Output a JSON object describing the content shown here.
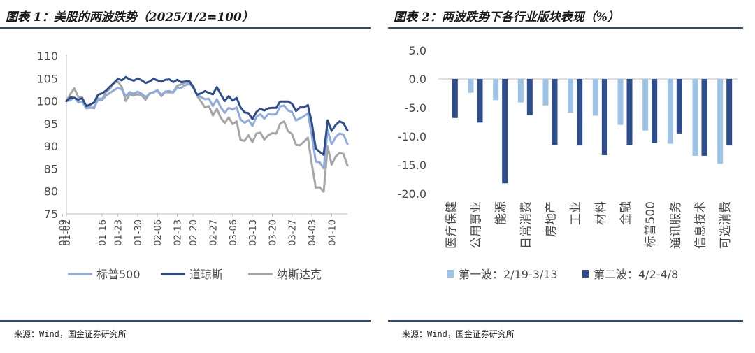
{
  "left": {
    "title": "图表 1：美股的两波跌势（2025/1/2=100）",
    "source": "来源：Wind，国金证券研究所",
    "chart_data": {
      "type": "line",
      "title": "图表 1：美股的两波跌势（2025/1/2=100）",
      "xlabel": "",
      "ylabel": "",
      "ylim": [
        75,
        110
      ],
      "yticks": [
        75,
        80,
        85,
        90,
        95,
        100,
        105,
        110
      ],
      "xticks": [
        "01-02",
        "01-09",
        "01-16",
        "01-23",
        "01-30",
        "02-06",
        "02-13",
        "02-20",
        "02-27",
        "03-06",
        "03-13",
        "03-20",
        "03-27",
        "04-03",
        "04-10"
      ],
      "grid": false,
      "legend": "bottom",
      "x": [
        "01-02",
        "01-03",
        "01-06",
        "01-07",
        "01-08",
        "01-10",
        "01-13",
        "01-14",
        "01-15",
        "01-16",
        "01-17",
        "01-21",
        "01-22",
        "01-23",
        "01-24",
        "01-27",
        "01-28",
        "01-29",
        "01-30",
        "01-31",
        "02-03",
        "02-04",
        "02-05",
        "02-06",
        "02-07",
        "02-10",
        "02-11",
        "02-12",
        "02-13",
        "02-14",
        "02-18",
        "02-19",
        "02-20",
        "02-21",
        "02-24",
        "02-25",
        "02-26",
        "02-27",
        "02-28",
        "03-03",
        "03-04",
        "03-05",
        "03-06",
        "03-07",
        "03-10",
        "03-11",
        "03-12",
        "03-13",
        "03-14",
        "03-17",
        "03-18",
        "03-19",
        "03-20",
        "03-21",
        "03-24",
        "03-25",
        "03-26",
        "03-27",
        "03-28",
        "03-31",
        "04-01",
        "04-02",
        "04-03",
        "04-04",
        "04-07",
        "04-08",
        "04-09",
        "04-10",
        "04-11",
        "04-14",
        "04-15",
        "04-16"
      ],
      "series": [
        {
          "name": "标普500",
          "color": "#8faadc",
          "values": [
            100,
            100.2,
            100.8,
            99.7,
            99.9,
            98.4,
            98.5,
            98.6,
            100.4,
            100.2,
            101.2,
            101.8,
            102.4,
            102.9,
            102.6,
            101.1,
            102.0,
            101.6,
            102.1,
            101.6,
            100.9,
            101.6,
            102.0,
            102.4,
            101.4,
            102.1,
            102.2,
            101.9,
            103.0,
            102.9,
            103.5,
            103.8,
            103.2,
            101.4,
            100.9,
            100.4,
            100.5,
            98.9,
            100.4,
            98.6,
            97.4,
            98.5,
            98.1,
            98.6,
            95.9,
            95.2,
            95.8,
            94.5,
            96.5,
            97.1,
            96.1,
            97.1,
            97.0,
            97.1,
            98.8,
            99.0,
            97.9,
            97.6,
            95.7,
            96.2,
            96.6,
            97.3,
            92.5,
            86.6,
            86.4,
            85.1,
            93.6,
            90.4,
            92.0,
            92.8,
            92.6,
            90.5
          ]
        },
        {
          "name": "道琼斯",
          "color": "#2e4d8c",
          "values": [
            100,
            100.8,
            100.7,
            100.3,
            100.6,
            98.9,
            99.2,
            99.7,
            101.4,
            101.7,
            102.3,
            103.2,
            104.0,
            104.9,
            104.6,
            105.3,
            104.8,
            104.5,
            105.0,
            104.6,
            104.0,
            104.3,
            104.9,
            104.6,
            104.3,
            104.7,
            104.8,
            104.2,
            104.7,
            104.2,
            104.3,
            104.5,
            103.1,
            101.4,
            101.7,
            102.2,
            101.8,
            101.5,
            103.1,
            101.5,
            100.0,
            101.1,
            100.1,
            100.7,
            98.6,
            97.5,
            97.3,
            96.0,
            97.6,
            98.3,
            97.9,
            98.4,
            98.5,
            98.5,
            99.9,
            99.9,
            99.9,
            99.4,
            97.8,
            98.6,
            98.6,
            99.1,
            95.2,
            89.5,
            88.7,
            88.1,
            95.7,
            93.4,
            94.7,
            95.5,
            95.1,
            93.5
          ]
        },
        {
          "name": "纳斯达克",
          "color": "#a6a6a6",
          "values": [
            100,
            101.6,
            102.8,
            100.9,
            100.8,
            98.9,
            98.6,
            98.4,
            100.6,
            100.4,
            102.0,
            102.7,
            104.0,
            104.3,
            103.1,
            100.0,
            101.5,
            101.2,
            101.5,
            101.3,
            100.3,
            101.7,
            101.9,
            102.3,
            101.1,
            102.0,
            101.9,
            102.0,
            103.4,
            103.7,
            104.1,
            104.0,
            103.5,
            101.2,
            99.9,
            98.6,
            98.9,
            96.8,
            98.3,
            96.3,
            95.1,
            96.4,
            94.9,
            95.5,
            91.4,
            91.2,
            92.4,
            90.9,
            92.8,
            93.0,
            91.5,
            92.4,
            92.9,
            92.8,
            95.0,
            95.5,
            93.3,
            92.7,
            90.3,
            90.2,
            91.0,
            91.9,
            86.1,
            80.8,
            80.9,
            79.9,
            89.9,
            85.9,
            87.7,
            88.5,
            88.3,
            85.7
          ]
        }
      ]
    }
  },
  "right": {
    "title": "图表 2：两波跌势下各行业版块表现（%）",
    "source": "来源：Wind，国金证券研究所",
    "chart_data": {
      "type": "bar",
      "title": "图表 2：两波跌势下各行业版块表现（%）",
      "xlabel": "",
      "ylabel": "",
      "ylim": [
        -20,
        5
      ],
      "yticks": [
        "5.0",
        "0.0",
        "-5.0",
        "-10.0",
        "-15.0",
        "-20.0"
      ],
      "grid": false,
      "legend": "bottom",
      "categories": [
        "医疗保健",
        "公用事业",
        "能源",
        "日常消费",
        "房地产",
        "工业",
        "材料",
        "金融",
        "标普500",
        "通讯服务",
        "信息技术",
        "可选消费"
      ],
      "series": [
        {
          "name": "第一波：2/19-3/13",
          "color": "#9dc3e6",
          "values": [
            0,
            -2.4,
            -3.7,
            -4.1,
            -4.6,
            -5.9,
            -6.4,
            -8.0,
            -9.0,
            -11.3,
            -13.4,
            -14.8
          ]
        },
        {
          "name": "第二波：4/2-4/8",
          "color": "#2e4d8c",
          "values": [
            -6.8,
            -7.6,
            -18.2,
            -6.3,
            -11.5,
            -11.6,
            -13.3,
            -11.5,
            -11.2,
            -9.5,
            -13.4,
            -11.6
          ]
        }
      ]
    }
  }
}
